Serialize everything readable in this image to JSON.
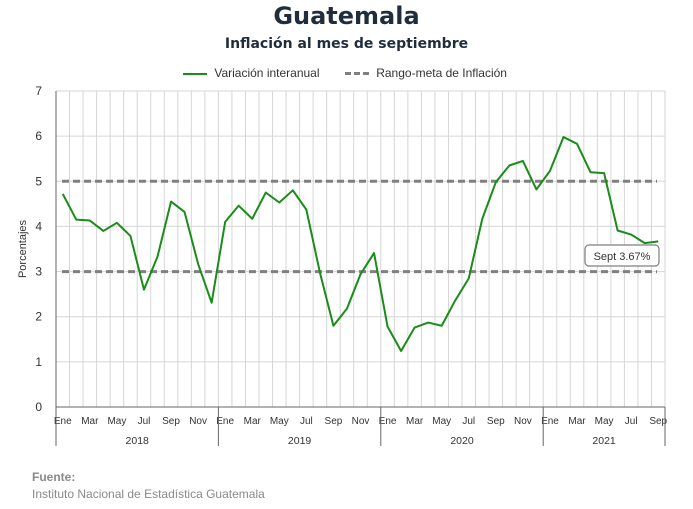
{
  "chart_data": {
    "type": "line",
    "title": "Guatemala",
    "subtitle": "Inflación al mes de septiembre",
    "ylabel": "Porcentajes",
    "ylim": [
      0,
      7
    ],
    "yticks": [
      0,
      1,
      2,
      3,
      4,
      5,
      6,
      7
    ],
    "grid": true,
    "legend_position": "top",
    "month_ticks": [
      "Ene",
      "Mar",
      "May",
      "Jul",
      "Sep",
      "Nov",
      "Ene",
      "Mar",
      "May",
      "Jul",
      "Sep",
      "Nov",
      "Ene",
      "Mar",
      "May",
      "Jul",
      "Sep",
      "Nov",
      "Ene",
      "Mar",
      "May",
      "Jul",
      "Sep"
    ],
    "years": [
      "2018",
      "2019",
      "2020",
      "2021"
    ],
    "series": [
      {
        "name": "Variación interanual",
        "color": "#1a8c1a",
        "x": [
          "2018-01",
          "2018-02",
          "2018-03",
          "2018-04",
          "2018-05",
          "2018-06",
          "2018-07",
          "2018-08",
          "2018-09",
          "2018-10",
          "2018-11",
          "2018-12",
          "2019-01",
          "2019-02",
          "2019-03",
          "2019-04",
          "2019-05",
          "2019-06",
          "2019-07",
          "2019-08",
          "2019-09",
          "2019-10",
          "2019-11",
          "2019-12",
          "2020-01",
          "2020-02",
          "2020-03",
          "2020-04",
          "2020-05",
          "2020-06",
          "2020-07",
          "2020-08",
          "2020-09",
          "2020-10",
          "2020-11",
          "2020-12",
          "2021-01",
          "2021-02",
          "2021-03",
          "2021-04",
          "2021-05",
          "2021-06",
          "2021-07",
          "2021-08",
          "2021-09"
        ],
        "values": [
          4.72,
          4.15,
          4.13,
          3.9,
          4.08,
          3.79,
          2.6,
          3.33,
          4.55,
          4.32,
          3.17,
          2.31,
          4.1,
          4.46,
          4.17,
          4.75,
          4.53,
          4.8,
          4.37,
          2.98,
          1.8,
          2.18,
          2.94,
          3.41,
          1.78,
          1.24,
          1.76,
          1.87,
          1.8,
          2.36,
          2.85,
          4.17,
          4.98,
          5.35,
          5.45,
          4.82,
          5.23,
          5.98,
          5.83,
          5.2,
          5.18,
          3.91,
          3.82,
          3.63,
          3.67
        ]
      },
      {
        "name": "Rango-meta de Inflación",
        "color": "#808080",
        "style": "dashed",
        "values": [
          3,
          5
        ]
      }
    ],
    "annotation": "Sept 3.67%"
  },
  "footer": {
    "source_label": "Fuente:",
    "source_text": "Instituto Nacional de Estadística Guatemala"
  }
}
